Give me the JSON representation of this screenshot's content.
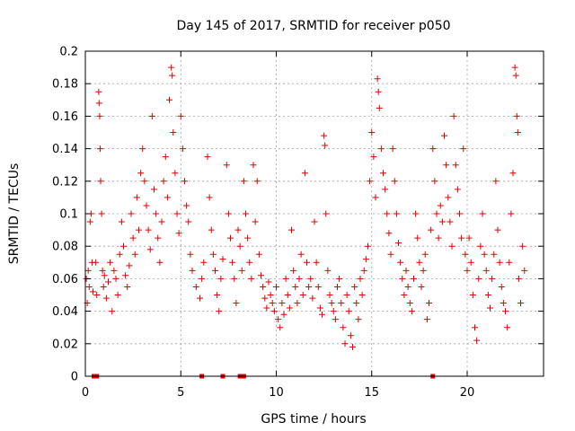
{
  "chart_data": {
    "type": "scatter",
    "title": "Day 145 of 2017, SRMTID for receiver p050",
    "xlabel": "GPS time / hours",
    "ylabel": "SRMTID / TECUs",
    "xlim": [
      0,
      24
    ],
    "ylim": [
      0,
      0.2
    ],
    "x_ticks": [
      0,
      5,
      10,
      15,
      20
    ],
    "x_tick_labels": [
      "0",
      "5",
      "10",
      "15",
      "20"
    ],
    "y_ticks": [
      0,
      0.02,
      0.04,
      0.06,
      0.08,
      0.1,
      0.12,
      0.14,
      0.16,
      0.18,
      0.2
    ],
    "y_tick_labels": [
      "0",
      "0.02",
      "0.04",
      "0.06",
      "0.08",
      "0.1",
      "0.12",
      "0.14",
      "0.16",
      "0.18",
      "0.2"
    ],
    "grid": true,
    "marker": "+",
    "color": "#e00000",
    "series": [
      {
        "name": "SRMTID",
        "points": [
          [
            0.05,
            0.06
          ],
          [
            0.1,
            0.045
          ],
          [
            0.15,
            0.065
          ],
          [
            0.2,
            0.055
          ],
          [
            0.25,
            0.095
          ],
          [
            0.3,
            0.1
          ],
          [
            0.35,
            0.07
          ],
          [
            0.4,
            0.052
          ],
          [
            0.55,
            0.07
          ],
          [
            0.6,
            0.05
          ],
          [
            0.7,
            0.175
          ],
          [
            0.72,
            0.168
          ],
          [
            0.75,
            0.16
          ],
          [
            0.78,
            0.14
          ],
          [
            0.8,
            0.12
          ],
          [
            0.85,
            0.1
          ],
          [
            0.9,
            0.065
          ],
          [
            0.95,
            0.055
          ],
          [
            1.0,
            0.062
          ],
          [
            1.1,
            0.048
          ],
          [
            1.2,
            0.058
          ],
          [
            1.3,
            0.07
          ],
          [
            1.4,
            0.04
          ],
          [
            1.5,
            0.065
          ],
          [
            1.6,
            0.06
          ],
          [
            1.7,
            0.05
          ],
          [
            1.8,
            0.075
          ],
          [
            1.9,
            0.095
          ],
          [
            2.0,
            0.08
          ],
          [
            2.1,
            0.062
          ],
          [
            2.2,
            0.055
          ],
          [
            2.3,
            0.068
          ],
          [
            2.4,
            0.1
          ],
          [
            2.5,
            0.085
          ],
          [
            2.6,
            0.075
          ],
          [
            2.7,
            0.11
          ],
          [
            2.8,
            0.09
          ],
          [
            2.9,
            0.125
          ],
          [
            3.0,
            0.14
          ],
          [
            3.1,
            0.12
          ],
          [
            3.2,
            0.105
          ],
          [
            3.3,
            0.09
          ],
          [
            3.4,
            0.078
          ],
          [
            3.5,
            0.16
          ],
          [
            3.6,
            0.115
          ],
          [
            3.7,
            0.1
          ],
          [
            3.8,
            0.085
          ],
          [
            3.9,
            0.07
          ],
          [
            4.0,
            0.095
          ],
          [
            4.1,
            0.12
          ],
          [
            4.2,
            0.135
          ],
          [
            4.3,
            0.11
          ],
          [
            4.4,
            0.17
          ],
          [
            4.5,
            0.19
          ],
          [
            4.55,
            0.185
          ],
          [
            4.6,
            0.15
          ],
          [
            4.7,
            0.125
          ],
          [
            4.8,
            0.1
          ],
          [
            4.9,
            0.088
          ],
          [
            5.0,
            0.16
          ],
          [
            5.1,
            0.14
          ],
          [
            5.2,
            0.12
          ],
          [
            5.3,
            0.105
          ],
          [
            5.4,
            0.095
          ],
          [
            5.5,
            0.075
          ],
          [
            5.6,
            0.065
          ],
          [
            5.8,
            0.055
          ],
          [
            6.0,
            0.048
          ],
          [
            6.1,
            0.06
          ],
          [
            6.2,
            0.07
          ],
          [
            6.4,
            0.135
          ],
          [
            6.5,
            0.11
          ],
          [
            6.6,
            0.09
          ],
          [
            6.7,
            0.075
          ],
          [
            6.8,
            0.065
          ],
          [
            6.9,
            0.05
          ],
          [
            7.0,
            0.04
          ],
          [
            7.1,
            0.06
          ],
          [
            7.2,
            0.072
          ],
          [
            7.4,
            0.13
          ],
          [
            7.5,
            0.1
          ],
          [
            7.6,
            0.085
          ],
          [
            7.7,
            0.07
          ],
          [
            7.8,
            0.06
          ],
          [
            7.9,
            0.045
          ],
          [
            8.0,
            0.09
          ],
          [
            8.1,
            0.08
          ],
          [
            8.2,
            0.065
          ],
          [
            8.3,
            0.12
          ],
          [
            8.4,
            0.1
          ],
          [
            8.5,
            0.085
          ],
          [
            8.6,
            0.07
          ],
          [
            8.7,
            0.06
          ],
          [
            8.8,
            0.13
          ],
          [
            8.9,
            0.095
          ],
          [
            9.0,
            0.12
          ],
          [
            9.1,
            0.075
          ],
          [
            9.2,
            0.062
          ],
          [
            9.3,
            0.055
          ],
          [
            9.4,
            0.048
          ],
          [
            9.5,
            0.042
          ],
          [
            9.6,
            0.058
          ],
          [
            9.7,
            0.05
          ],
          [
            9.8,
            0.045
          ],
          [
            9.9,
            0.04
          ],
          [
            10.0,
            0.055
          ],
          [
            10.1,
            0.035
          ],
          [
            10.2,
            0.03
          ],
          [
            10.3,
            0.045
          ],
          [
            10.4,
            0.038
          ],
          [
            10.5,
            0.06
          ],
          [
            10.6,
            0.05
          ],
          [
            10.7,
            0.042
          ],
          [
            10.8,
            0.09
          ],
          [
            10.9,
            0.065
          ],
          [
            11.0,
            0.055
          ],
          [
            11.1,
            0.045
          ],
          [
            11.2,
            0.06
          ],
          [
            11.3,
            0.075
          ],
          [
            11.4,
            0.05
          ],
          [
            11.5,
            0.125
          ],
          [
            11.6,
            0.07
          ],
          [
            11.7,
            0.055
          ],
          [
            11.8,
            0.06
          ],
          [
            11.9,
            0.048
          ],
          [
            12.0,
            0.095
          ],
          [
            12.1,
            0.07
          ],
          [
            12.2,
            0.055
          ],
          [
            12.3,
            0.042
          ],
          [
            12.4,
            0.038
          ],
          [
            12.5,
            0.148
          ],
          [
            12.55,
            0.142
          ],
          [
            12.6,
            0.1
          ],
          [
            12.7,
            0.065
          ],
          [
            12.8,
            0.05
          ],
          [
            12.9,
            0.045
          ],
          [
            13.0,
            0.04
          ],
          [
            13.1,
            0.035
          ],
          [
            13.2,
            0.055
          ],
          [
            13.3,
            0.06
          ],
          [
            13.4,
            0.045
          ],
          [
            13.5,
            0.03
          ],
          [
            13.6,
            0.02
          ],
          [
            13.7,
            0.05
          ],
          [
            13.8,
            0.04
          ],
          [
            13.9,
            0.025
          ],
          [
            14.0,
            0.018
          ],
          [
            14.1,
            0.055
          ],
          [
            14.2,
            0.045
          ],
          [
            14.3,
            0.035
          ],
          [
            14.4,
            0.06
          ],
          [
            14.5,
            0.05
          ],
          [
            14.6,
            0.065
          ],
          [
            14.7,
            0.072
          ],
          [
            14.8,
            0.08
          ],
          [
            14.9,
            0.12
          ],
          [
            15.0,
            0.15
          ],
          [
            15.1,
            0.135
          ],
          [
            15.2,
            0.11
          ],
          [
            15.3,
            0.183
          ],
          [
            15.35,
            0.175
          ],
          [
            15.4,
            0.165
          ],
          [
            15.5,
            0.14
          ],
          [
            15.6,
            0.125
          ],
          [
            15.7,
            0.115
          ],
          [
            15.8,
            0.1
          ],
          [
            15.9,
            0.088
          ],
          [
            16.0,
            0.075
          ],
          [
            16.1,
            0.14
          ],
          [
            16.2,
            0.12
          ],
          [
            16.3,
            0.1
          ],
          [
            16.4,
            0.082
          ],
          [
            16.5,
            0.07
          ],
          [
            16.6,
            0.06
          ],
          [
            16.7,
            0.05
          ],
          [
            16.8,
            0.065
          ],
          [
            16.9,
            0.055
          ],
          [
            17.0,
            0.045
          ],
          [
            17.1,
            0.04
          ],
          [
            17.2,
            0.06
          ],
          [
            17.3,
            0.1
          ],
          [
            17.4,
            0.085
          ],
          [
            17.5,
            0.07
          ],
          [
            17.6,
            0.055
          ],
          [
            17.7,
            0.065
          ],
          [
            17.8,
            0.075
          ],
          [
            17.9,
            0.035
          ],
          [
            18.0,
            0.045
          ],
          [
            18.1,
            0.09
          ],
          [
            18.2,
            0.14
          ],
          [
            18.3,
            0.12
          ],
          [
            18.4,
            0.1
          ],
          [
            18.5,
            0.085
          ],
          [
            18.6,
            0.105
          ],
          [
            18.7,
            0.095
          ],
          [
            18.8,
            0.148
          ],
          [
            18.9,
            0.13
          ],
          [
            19.0,
            0.11
          ],
          [
            19.1,
            0.095
          ],
          [
            19.2,
            0.08
          ],
          [
            19.3,
            0.16
          ],
          [
            19.4,
            0.13
          ],
          [
            19.5,
            0.115
          ],
          [
            19.6,
            0.1
          ],
          [
            19.7,
            0.085
          ],
          [
            19.8,
            0.14
          ],
          [
            19.9,
            0.075
          ],
          [
            20.0,
            0.065
          ],
          [
            20.1,
            0.085
          ],
          [
            20.2,
            0.07
          ],
          [
            20.3,
            0.05
          ],
          [
            20.4,
            0.03
          ],
          [
            20.5,
            0.022
          ],
          [
            20.6,
            0.06
          ],
          [
            20.7,
            0.08
          ],
          [
            20.8,
            0.1
          ],
          [
            20.9,
            0.075
          ],
          [
            21.0,
            0.065
          ],
          [
            21.1,
            0.05
          ],
          [
            21.2,
            0.042
          ],
          [
            21.3,
            0.06
          ],
          [
            21.4,
            0.075
          ],
          [
            21.5,
            0.12
          ],
          [
            21.6,
            0.09
          ],
          [
            21.7,
            0.07
          ],
          [
            21.8,
            0.055
          ],
          [
            21.9,
            0.045
          ],
          [
            22.0,
            0.04
          ],
          [
            22.1,
            0.03
          ],
          [
            22.2,
            0.07
          ],
          [
            22.3,
            0.1
          ],
          [
            22.4,
            0.125
          ],
          [
            22.5,
            0.19
          ],
          [
            22.55,
            0.185
          ],
          [
            22.6,
            0.16
          ],
          [
            22.65,
            0.15
          ],
          [
            22.7,
            0.06
          ],
          [
            22.8,
            0.045
          ],
          [
            22.9,
            0.08
          ],
          [
            23.0,
            0.065
          ]
        ]
      }
    ],
    "zero_markers": [
      0.45,
      0.6,
      6.1,
      7.2,
      8.1,
      8.3,
      18.2
    ],
    "zero_markers_value": 0
  }
}
